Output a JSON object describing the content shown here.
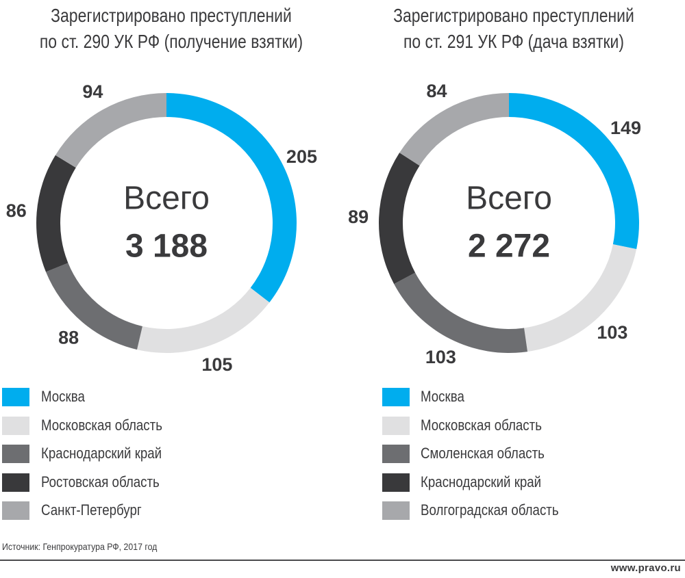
{
  "chart_data": [
    {
      "type": "pie",
      "title": "Зарегистрировано преступлений по ст. 290 УК РФ (получение взятки)",
      "title_lines": [
        "Зарегистрировано преступлений",
        "по ст. 290 УК РФ (получение взятки)"
      ],
      "center_label": "Всего",
      "total": "3 188",
      "categories": [
        "Москва",
        "Московская область",
        "Краснодарский край",
        "Ростовская область",
        "Санкт-Петербург"
      ],
      "values": [
        205,
        105,
        88,
        86,
        94
      ],
      "value_labels": [
        "205",
        "105",
        "88",
        "86",
        "94"
      ],
      "colors": [
        "#00adee",
        "#e0e0e1",
        "#6d6e71",
        "#39393b",
        "#a7a8ab"
      ],
      "legend": "bottom"
    },
    {
      "type": "pie",
      "title": "Зарегистрировано преступлений по ст. 291 УК РФ (дача взятки)",
      "title_lines": [
        "Зарегистрировано преступлений",
        "по ст. 291 УК РФ (дача взятки)"
      ],
      "center_label": "Всего",
      "total": "2 272",
      "categories": [
        "Москва",
        "Московская область",
        "Смоленская область",
        "Краснодарский край",
        "Волгоградская область"
      ],
      "values": [
        149,
        103,
        103,
        89,
        84
      ],
      "value_labels": [
        "149",
        "103",
        "103",
        "89",
        "84"
      ],
      "colors": [
        "#00adee",
        "#e0e0e1",
        "#6d6e71",
        "#39393b",
        "#a7a8ab"
      ],
      "legend": "bottom"
    }
  ],
  "footer": {
    "source": "Источник: Генпрокуратура РФ, 2017 год",
    "site": "www.pravo.ru"
  }
}
